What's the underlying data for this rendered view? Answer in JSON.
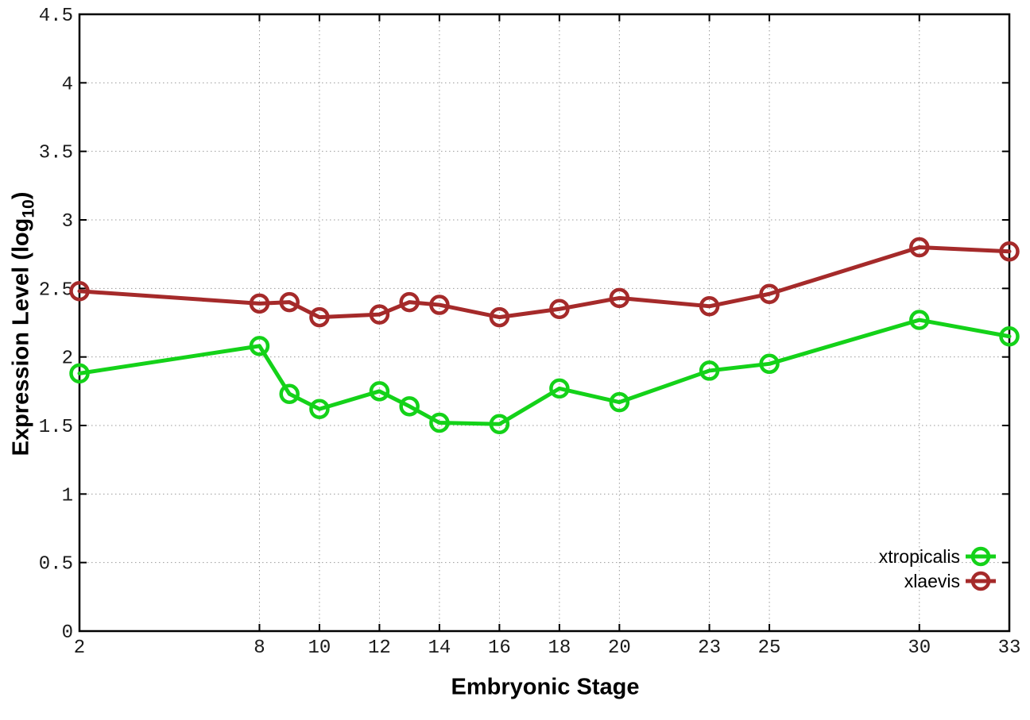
{
  "chart_data": {
    "type": "line",
    "title": "",
    "xlabel": "Embryonic Stage",
    "ylabel_main": "Expression Level (log",
    "ylabel_sub": "10",
    "ylabel_close": ")",
    "x": [
      2,
      8,
      9,
      10,
      12,
      13,
      14,
      16,
      18,
      20,
      23,
      25,
      30,
      33
    ],
    "series": [
      {
        "name": "xtropicalis",
        "color": "#14d219",
        "marker": "open-circle",
        "values": [
          1.88,
          2.08,
          1.73,
          1.62,
          1.75,
          1.64,
          1.52,
          1.51,
          1.77,
          1.67,
          1.9,
          1.95,
          2.27,
          2.15
        ]
      },
      {
        "name": "xlaevis",
        "color": "#a52a2a",
        "marker": "open-circle",
        "values": [
          2.48,
          2.39,
          2.4,
          2.29,
          2.31,
          2.4,
          2.38,
          2.29,
          2.35,
          2.43,
          2.37,
          2.46,
          2.8,
          2.77
        ]
      }
    ],
    "xticks": [
      2,
      8,
      10,
      12,
      14,
      16,
      18,
      20,
      23,
      25,
      30,
      33
    ],
    "yticks": [
      0,
      0.5,
      1,
      1.5,
      2,
      2.5,
      3,
      3.5,
      4,
      4.5
    ],
    "xlim": [
      2,
      33
    ],
    "ylim": [
      0,
      4.5
    ],
    "grid": true,
    "grid_style": "dotted",
    "grid_color": "#9a9a9a",
    "axis_color": "#000000",
    "tick_label_color": "#1a1a1a",
    "background": "#ffffff",
    "legend_position": "inside-bottom-right",
    "legend_order": [
      "xtropicalis",
      "xlaevis"
    ]
  }
}
